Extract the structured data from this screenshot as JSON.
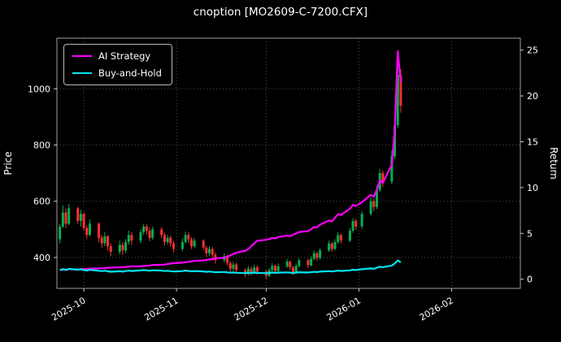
{
  "title": "cnoption [MO2609-C-7200.CFX]",
  "chart_data": {
    "type": "candlestick+line",
    "title": "cnoption [MO2609-C-7200.CFX]",
    "x_axis": {
      "epoch": "2025-09-22",
      "range_days": [
        0,
        155
      ],
      "tick_days": [
        9,
        40,
        70,
        101,
        132
      ],
      "tick_labels": [
        "2025-10",
        "2025-11",
        "2025-12",
        "2026-01",
        "2026-02"
      ]
    },
    "left_axis": {
      "label": "Price",
      "ticks": [
        400,
        600,
        800,
        1000
      ],
      "range": [
        290,
        1180
      ]
    },
    "right_axis": {
      "label": "Return",
      "ticks": [
        0,
        5,
        10,
        15,
        20,
        25
      ],
      "range": [
        -1,
        26.3
      ]
    },
    "colors": {
      "background": "#000000",
      "grid": "#4f4f4f",
      "frame": "#c8c8c8",
      "text": "#ffffff",
      "up": "#00b050",
      "down": "#ff3030",
      "ai_strategy": "#ff00ff",
      "buy_and_hold": "#00e5ee"
    },
    "days": [
      1,
      2,
      3,
      4,
      7,
      8,
      9,
      10,
      11,
      14,
      15,
      16,
      17,
      18,
      21,
      22,
      23,
      24,
      25,
      28,
      29,
      30,
      31,
      32,
      35,
      36,
      37,
      38,
      39,
      42,
      43,
      44,
      45,
      46,
      49,
      50,
      51,
      52,
      53,
      56,
      57,
      58,
      59,
      60,
      63,
      64,
      65,
      66,
      67,
      70,
      71,
      72,
      73,
      74,
      77,
      78,
      79,
      80,
      81,
      84,
      85,
      86,
      87,
      88,
      91,
      92,
      93,
      94,
      95,
      98,
      99,
      100,
      102,
      105,
      106,
      107,
      108,
      109,
      112,
      113,
      114,
      115
    ],
    "candles": [
      [
        465,
        520,
        450,
        510
      ],
      [
        510,
        585,
        505,
        560
      ],
      [
        560,
        575,
        505,
        520
      ],
      [
        520,
        590,
        515,
        575
      ],
      [
        575,
        580,
        520,
        530
      ],
      [
        530,
        570,
        510,
        555
      ],
      [
        555,
        560,
        495,
        505
      ],
      [
        505,
        515,
        465,
        480
      ],
      [
        480,
        535,
        475,
        520
      ],
      [
        520,
        525,
        455,
        470
      ],
      [
        470,
        480,
        435,
        450
      ],
      [
        450,
        490,
        440,
        475
      ],
      [
        475,
        480,
        425,
        440
      ],
      [
        440,
        450,
        405,
        420
      ],
      [
        420,
        460,
        410,
        445
      ],
      [
        445,
        455,
        408,
        425
      ],
      [
        425,
        465,
        415,
        455
      ],
      [
        455,
        495,
        445,
        480
      ],
      [
        480,
        490,
        445,
        460
      ],
      [
        460,
        500,
        450,
        490
      ],
      [
        490,
        520,
        480,
        510
      ],
      [
        510,
        520,
        482,
        495
      ],
      [
        495,
        505,
        458,
        470
      ],
      [
        470,
        510,
        462,
        500
      ],
      [
        500,
        508,
        468,
        480
      ],
      [
        480,
        488,
        442,
        455
      ],
      [
        455,
        482,
        445,
        470
      ],
      [
        470,
        478,
        438,
        450
      ],
      [
        450,
        460,
        418,
        430
      ],
      [
        430,
        468,
        422,
        455
      ],
      [
        455,
        492,
        448,
        480
      ],
      [
        480,
        490,
        452,
        465
      ],
      [
        465,
        472,
        430,
        440
      ],
      [
        440,
        470,
        432,
        460
      ],
      [
        460,
        465,
        425,
        435
      ],
      [
        435,
        442,
        402,
        415
      ],
      [
        415,
        440,
        405,
        430
      ],
      [
        430,
        438,
        398,
        410
      ],
      [
        410,
        418,
        378,
        390
      ],
      [
        390,
        415,
        382,
        405
      ],
      [
        405,
        410,
        370,
        380
      ],
      [
        380,
        388,
        348,
        360
      ],
      [
        360,
        385,
        352,
        375
      ],
      [
        375,
        382,
        342,
        355
      ],
      [
        355,
        362,
        330,
        340
      ],
      [
        340,
        370,
        335,
        360
      ],
      [
        360,
        368,
        336,
        345
      ],
      [
        345,
        375,
        340,
        365
      ],
      [
        365,
        372,
        338,
        350
      ],
      [
        350,
        355,
        325,
        335
      ],
      [
        335,
        362,
        330,
        355
      ],
      [
        355,
        380,
        348,
        370
      ],
      [
        370,
        375,
        344,
        352
      ],
      [
        352,
        378,
        346,
        368
      ],
      [
        368,
        395,
        362,
        385
      ],
      [
        385,
        390,
        355,
        365
      ],
      [
        365,
        370,
        338,
        345
      ],
      [
        345,
        378,
        340,
        370
      ],
      [
        370,
        398,
        364,
        390
      ],
      [
        390,
        395,
        362,
        372
      ],
      [
        372,
        405,
        368,
        395
      ],
      [
        395,
        425,
        390,
        415
      ],
      [
        415,
        420,
        388,
        398
      ],
      [
        398,
        432,
        392,
        425
      ],
      [
        425,
        460,
        420,
        450
      ],
      [
        450,
        455,
        420,
        430
      ],
      [
        430,
        465,
        425,
        455
      ],
      [
        455,
        490,
        448,
        480
      ],
      [
        480,
        485,
        450,
        460
      ],
      [
        460,
        505,
        455,
        495
      ],
      [
        495,
        540,
        488,
        530
      ],
      [
        530,
        538,
        498,
        510
      ],
      [
        510,
        565,
        502,
        555
      ],
      [
        555,
        615,
        548,
        600
      ],
      [
        600,
        610,
        565,
        580
      ],
      [
        580,
        655,
        572,
        640
      ],
      [
        640,
        715,
        632,
        700
      ],
      [
        700,
        710,
        650,
        670
      ],
      [
        670,
        780,
        660,
        760
      ],
      [
        760,
        890,
        750,
        870
      ],
      [
        870,
        1130,
        860,
        1050
      ],
      [
        1050,
        1070,
        915,
        940
      ]
    ],
    "series": [
      {
        "name": "AI Strategy",
        "axis": "return",
        "color": "#ff00ff",
        "values": [
          1.0,
          1.05,
          1.0,
          1.1,
          1.05,
          1.1,
          1.1,
          1.12,
          1.15,
          1.18,
          1.2,
          1.22,
          1.25,
          1.28,
          1.3,
          1.32,
          1.35,
          1.38,
          1.4,
          1.42,
          1.45,
          1.48,
          1.5,
          1.55,
          1.58,
          1.6,
          1.65,
          1.7,
          1.75,
          1.8,
          1.85,
          1.9,
          1.95,
          2.0,
          2.05,
          2.1,
          2.15,
          2.2,
          2.25,
          2.35,
          2.45,
          2.6,
          2.75,
          2.9,
          3.1,
          3.3,
          3.6,
          3.9,
          4.2,
          4.3,
          4.4,
          4.5,
          4.45,
          4.6,
          4.75,
          4.7,
          4.85,
          5.0,
          5.15,
          5.25,
          5.45,
          5.7,
          5.65,
          5.95,
          6.4,
          6.3,
          6.7,
          7.1,
          7.0,
          7.7,
          8.1,
          8.0,
          8.4,
          9.2,
          9.0,
          9.8,
          10.8,
          10.5,
          12.5,
          16.2,
          24.9,
          21.5
        ]
      },
      {
        "name": "Buy-and-Hold",
        "axis": "return",
        "color": "#00e5ee",
        "values": [
          1.0,
          1.1,
          1.02,
          1.13,
          1.04,
          1.09,
          0.99,
          0.94,
          1.02,
          0.92,
          0.88,
          0.93,
          0.86,
          0.82,
          0.87,
          0.83,
          0.89,
          0.94,
          0.9,
          0.96,
          1.0,
          0.97,
          0.92,
          0.98,
          0.94,
          0.89,
          0.92,
          0.88,
          0.84,
          0.89,
          0.94,
          0.91,
          0.86,
          0.9,
          0.85,
          0.81,
          0.84,
          0.8,
          0.76,
          0.79,
          0.75,
          0.71,
          0.74,
          0.7,
          0.67,
          0.71,
          0.68,
          0.72,
          0.69,
          0.66,
          0.7,
          0.73,
          0.69,
          0.72,
          0.75,
          0.72,
          0.68,
          0.73,
          0.76,
          0.73,
          0.77,
          0.81,
          0.78,
          0.83,
          0.88,
          0.84,
          0.89,
          0.94,
          0.9,
          0.97,
          1.04,
          1.0,
          1.09,
          1.18,
          1.14,
          1.25,
          1.37,
          1.31,
          1.49,
          1.71,
          2.06,
          1.84
        ]
      }
    ],
    "legend": {
      "position": "upper-left",
      "entries": [
        "AI Strategy",
        "Buy-and-Hold"
      ]
    },
    "grid": "dotted"
  }
}
